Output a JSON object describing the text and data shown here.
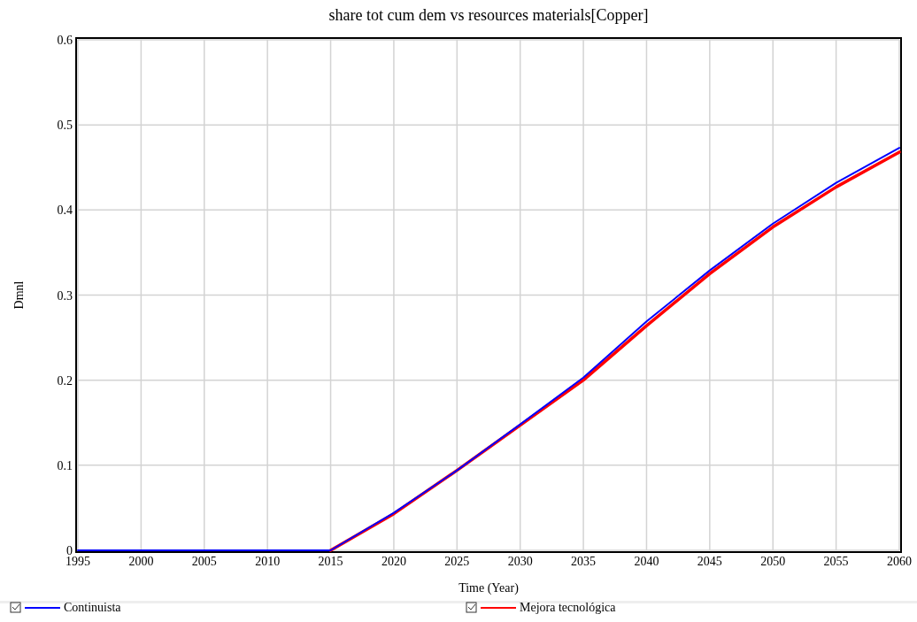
{
  "chart_data": {
    "type": "line",
    "title": "share tot cum dem vs resources materials[Copper]",
    "xlabel": "Time (Year)",
    "ylabel": "Dmnl",
    "x": [
      1995,
      2000,
      2005,
      2010,
      2015,
      2020,
      2025,
      2030,
      2035,
      2040,
      2045,
      2050,
      2055,
      2060
    ],
    "xlim": [
      1995,
      2060
    ],
    "xticks": [
      1995,
      2000,
      2005,
      2010,
      2015,
      2020,
      2025,
      2030,
      2035,
      2040,
      2045,
      2050,
      2055,
      2060
    ],
    "ylim": [
      0,
      0.6
    ],
    "yticks": [
      0,
      0.1,
      0.2,
      0.3,
      0.4,
      0.5,
      0.6
    ],
    "grid": true,
    "legend": "bottom",
    "series": [
      {
        "name": "Continuista",
        "color": "#0000ff",
        "values": [
          0,
          0,
          0,
          0,
          0,
          0.044,
          0.094,
          0.148,
          0.203,
          0.269,
          0.329,
          0.384,
          0.432,
          0.473
        ]
      },
      {
        "name": "Mejora tecnológica",
        "color": "#ff0000",
        "values": [
          null,
          null,
          null,
          null,
          0,
          0.043,
          0.094,
          0.147,
          0.2,
          0.264,
          0.325,
          0.38,
          0.427,
          0.468
        ]
      }
    ]
  }
}
